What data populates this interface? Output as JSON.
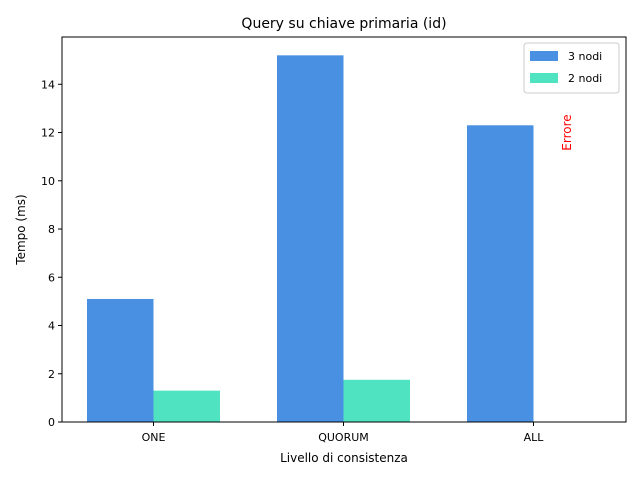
{
  "chart_data": {
    "type": "bar",
    "title": "Query su chiave primaria (id)",
    "xlabel": "Livello di consistenza",
    "ylabel": "Tempo (ms)",
    "categories": [
      "ONE",
      "QUORUM",
      "ALL"
    ],
    "series": [
      {
        "name": "3 nodi",
        "values": [
          5.1,
          15.2,
          12.3
        ],
        "color": "#4A90E2"
      },
      {
        "name": "2 nodi",
        "values": [
          1.3,
          1.75,
          null
        ],
        "color": "#50E3C2"
      }
    ],
    "ylim": [
      0,
      15.96
    ],
    "yticks": [
      0,
      2,
      4,
      6,
      8,
      10,
      12,
      14
    ],
    "legend_position": "top-right",
    "annotations": [
      {
        "text": "Errore",
        "category": "ALL",
        "series": "2 nodi",
        "y": 12,
        "color": "#FF0000"
      }
    ]
  }
}
